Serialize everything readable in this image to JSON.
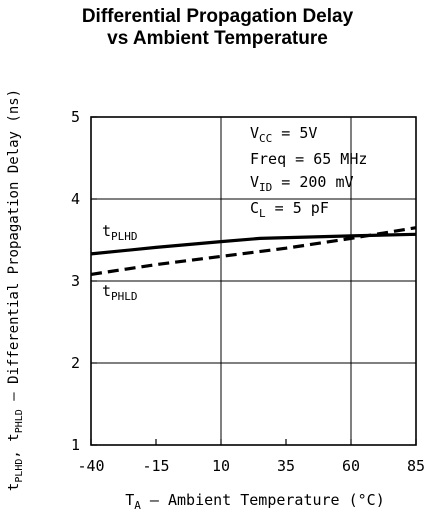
{
  "chart_data": {
    "type": "line",
    "title_line1": "Differential Propagation Delay",
    "title_line2": "vs Ambient Temperature",
    "xlabel": {
      "main": "T",
      "sub": "A",
      "rest": " – Ambient Temperature (°C)"
    },
    "ylabel": {
      "p1": "t",
      "s1": "PLHD",
      "p2": ", t",
      "s2": "PHLD",
      "rest": " – Differential Propagation Delay (ns)"
    },
    "xlim": [
      -40,
      85
    ],
    "ylim": [
      1,
      5
    ],
    "x_ticks": [
      -40,
      -15,
      10,
      35,
      60,
      85
    ],
    "x_tick_labels": [
      "-40",
      "-15",
      "10",
      "35",
      "60",
      "85"
    ],
    "y_ticks": [
      1,
      2,
      3,
      4,
      5
    ],
    "y_tick_labels": [
      "1",
      "2",
      "3",
      "4",
      "5"
    ],
    "grid": true,
    "series": [
      {
        "name": "tPLHD",
        "label_main": "t",
        "label_sub": "PLHD",
        "style": "solid",
        "x": [
          -40,
          -15,
          10,
          25,
          60,
          85
        ],
        "y": [
          3.33,
          3.41,
          3.48,
          3.52,
          3.55,
          3.57
        ]
      },
      {
        "name": "tPHLD",
        "label_main": "t",
        "label_sub": "PHLD",
        "style": "dashed",
        "x": [
          -40,
          -15,
          10,
          35,
          60,
          85
        ],
        "y": [
          3.08,
          3.2,
          3.3,
          3.4,
          3.52,
          3.65
        ]
      }
    ],
    "annotations": [
      {
        "main": "V",
        "sub": "CC",
        "rest": " = 5V"
      },
      {
        "main": "Freq = 65 MHz",
        "sub": "",
        "rest": ""
      },
      {
        "main": "V",
        "sub": "ID",
        "rest": " = 200 mV"
      },
      {
        "main": "C",
        "sub": "L",
        "rest": " = 5 pF"
      }
    ]
  }
}
